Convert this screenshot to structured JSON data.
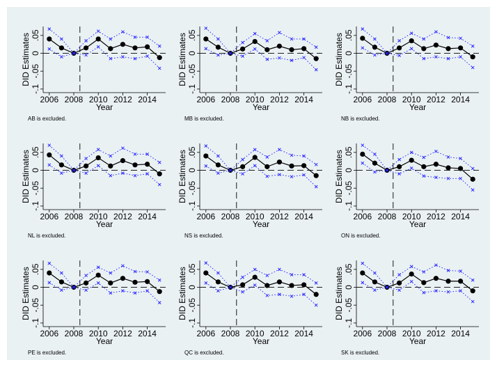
{
  "chart_data": [
    {
      "type": "line",
      "y_label": "DID Estimates",
      "x_label": "Year",
      "caption": "AB is excluded.",
      "x": [
        2006,
        2007,
        2008,
        2009,
        2010,
        2011,
        2012,
        2013,
        2014,
        2015
      ],
      "series": [
        {
          "color": "#000000",
          "marker": "circle",
          "line_style": "solid",
          "values": [
            0.04,
            0.015,
            0,
            0.015,
            0.04,
            0.013,
            0.025,
            0.015,
            0.018,
            -0.012
          ]
        },
        {
          "color": "#2a2aff",
          "marker": "x",
          "line_style": "dotted",
          "values": [
            0.068,
            0.04,
            0,
            0.035,
            0.062,
            0.04,
            0.06,
            0.045,
            0.045,
            0.02
          ]
        },
        {
          "color": "#2a2aff",
          "marker": "x",
          "line_style": "dotted",
          "values": [
            0.012,
            -0.01,
            0,
            -0.005,
            0.018,
            -0.015,
            -0.01,
            -0.015,
            -0.008,
            -0.042
          ]
        }
      ],
      "xlim": [
        2005.5,
        2015.5
      ],
      "ylim": [
        -0.11,
        0.075
      ],
      "xticks": [
        2006,
        2008,
        2010,
        2012,
        2014
      ],
      "yticks": [
        {
          "value": -0.1,
          "label": "-.1"
        },
        {
          "value": -0.05,
          "label": "-.05"
        },
        0,
        {
          "value": 0.05,
          "label": ".05"
        }
      ],
      "vline": 2008.5,
      "hline": 0
    },
    {
      "type": "line",
      "y_label": "DID Estimates",
      "x_label": "Year",
      "caption": "MB is excluded.",
      "x": [
        2006,
        2007,
        2008,
        2009,
        2010,
        2011,
        2012,
        2013,
        2014,
        2015
      ],
      "series": [
        {
          "color": "#000000",
          "marker": "circle",
          "line_style": "solid",
          "values": [
            0.04,
            0.017,
            0,
            0.012,
            0.033,
            0.01,
            0.02,
            0.01,
            0.013,
            -0.015
          ]
        },
        {
          "color": "#2a2aff",
          "marker": "x",
          "line_style": "dotted",
          "values": [
            0.07,
            0.04,
            0,
            0.03,
            0.055,
            0.035,
            0.058,
            0.04,
            0.04,
            0.017
          ]
        },
        {
          "color": "#2a2aff",
          "marker": "x",
          "line_style": "dotted",
          "values": [
            0.013,
            -0.005,
            0,
            -0.008,
            0.012,
            -0.017,
            -0.013,
            -0.02,
            -0.012,
            -0.046
          ]
        }
      ],
      "xlim": [
        2005.5,
        2015.5
      ],
      "ylim": [
        -0.11,
        0.075
      ],
      "xticks": [
        2006,
        2008,
        2010,
        2012,
        2014
      ],
      "yticks": [
        {
          "value": -0.1,
          "label": "-.1"
        },
        {
          "value": -0.05,
          "label": "-.05"
        },
        0,
        {
          "value": 0.05,
          "label": ".05"
        }
      ],
      "vline": 2008.5,
      "hline": 0
    },
    {
      "type": "line",
      "y_label": "DID Estimates",
      "x_label": "Year",
      "caption": "NB is excluded.",
      "x": [
        2006,
        2007,
        2008,
        2009,
        2010,
        2011,
        2012,
        2013,
        2014,
        2015
      ],
      "series": [
        {
          "color": "#000000",
          "marker": "circle",
          "line_style": "solid",
          "values": [
            0.042,
            0.017,
            0,
            0.015,
            0.035,
            0.013,
            0.023,
            0.013,
            0.015,
            -0.01
          ]
        },
        {
          "color": "#2a2aff",
          "marker": "x",
          "line_style": "dotted",
          "values": [
            0.068,
            0.04,
            0,
            0.035,
            0.056,
            0.04,
            0.06,
            0.044,
            0.042,
            0.02
          ]
        },
        {
          "color": "#2a2aff",
          "marker": "x",
          "line_style": "dotted",
          "values": [
            0.015,
            -0.005,
            0,
            -0.006,
            0.013,
            -0.015,
            -0.01,
            -0.015,
            -0.01,
            -0.04
          ]
        }
      ],
      "xlim": [
        2005.5,
        2015.5
      ],
      "ylim": [
        -0.11,
        0.075
      ],
      "xticks": [
        2006,
        2008,
        2010,
        2012,
        2014
      ],
      "yticks": [
        {
          "value": -0.1,
          "label": "-.1"
        },
        {
          "value": -0.05,
          "label": "-.05"
        },
        0,
        {
          "value": 0.05,
          "label": ".05"
        }
      ],
      "vline": 2008.5,
      "hline": 0
    },
    {
      "type": "line",
      "y_label": "DID Estimates",
      "x_label": "Year",
      "caption": "NL is excluded.",
      "x": [
        2006,
        2007,
        2008,
        2009,
        2010,
        2011,
        2012,
        2013,
        2014,
        2015
      ],
      "series": [
        {
          "color": "#000000",
          "marker": "circle",
          "line_style": "solid",
          "values": [
            0.043,
            0.015,
            0,
            0.012,
            0.035,
            0.012,
            0.027,
            0.015,
            0.017,
            -0.01
          ]
        },
        {
          "color": "#2a2aff",
          "marker": "x",
          "line_style": "dotted",
          "values": [
            0.07,
            0.04,
            0,
            0.033,
            0.058,
            0.04,
            0.062,
            0.045,
            0.045,
            0.022
          ]
        },
        {
          "color": "#2a2aff",
          "marker": "x",
          "line_style": "dotted",
          "values": [
            0.015,
            -0.008,
            0,
            -0.008,
            0.013,
            -0.015,
            -0.008,
            -0.015,
            -0.01,
            -0.04
          ]
        }
      ],
      "xlim": [
        2005.5,
        2015.5
      ],
      "ylim": [
        -0.11,
        0.075
      ],
      "xticks": [
        2006,
        2008,
        2010,
        2012,
        2014
      ],
      "yticks": [
        {
          "value": -0.1,
          "label": "-.1"
        },
        {
          "value": -0.05,
          "label": "-.05"
        },
        0,
        {
          "value": 0.05,
          "label": ".05"
        }
      ],
      "vline": 2008.5,
      "hline": 0
    },
    {
      "type": "line",
      "y_label": "DID Estimates",
      "x_label": "Year",
      "caption": "NS is excluded.",
      "x": [
        2006,
        2007,
        2008,
        2009,
        2010,
        2011,
        2012,
        2013,
        2014,
        2015
      ],
      "series": [
        {
          "color": "#000000",
          "marker": "circle",
          "line_style": "solid",
          "values": [
            0.04,
            0.015,
            0,
            0.01,
            0.036,
            0.01,
            0.023,
            0.012,
            0.013,
            -0.015
          ]
        },
        {
          "color": "#2a2aff",
          "marker": "x",
          "line_style": "dotted",
          "values": [
            0.068,
            0.04,
            0,
            0.03,
            0.058,
            0.037,
            0.058,
            0.042,
            0.04,
            0.016
          ]
        },
        {
          "color": "#2a2aff",
          "marker": "x",
          "line_style": "dotted",
          "values": [
            0.012,
            -0.008,
            0,
            -0.01,
            0.013,
            -0.017,
            -0.012,
            -0.018,
            -0.013,
            -0.046
          ]
        }
      ],
      "xlim": [
        2005.5,
        2015.5
      ],
      "ylim": [
        -0.11,
        0.075
      ],
      "xticks": [
        2006,
        2008,
        2010,
        2012,
        2014
      ],
      "yticks": [
        {
          "value": -0.1,
          "label": "-.1"
        },
        {
          "value": -0.05,
          "label": "-.05"
        },
        0,
        {
          "value": 0.05,
          "label": ".05"
        }
      ],
      "vline": 2008.5,
      "hline": 0
    },
    {
      "type": "line",
      "y_label": "DID Estimates",
      "x_label": "Year",
      "caption": "ON is excluded.",
      "x": [
        2006,
        2007,
        2008,
        2009,
        2010,
        2011,
        2012,
        2013,
        2014,
        2015
      ],
      "series": [
        {
          "color": "#000000",
          "marker": "circle",
          "line_style": "solid",
          "values": [
            0.045,
            0.02,
            0,
            0.01,
            0.028,
            0.01,
            0.017,
            0.007,
            0.005,
            -0.025
          ]
        },
        {
          "color": "#2a2aff",
          "marker": "x",
          "line_style": "dotted",
          "values": [
            0.07,
            0.045,
            0,
            0.03,
            0.05,
            0.036,
            0.053,
            0.037,
            0.033,
            0.005
          ]
        },
        {
          "color": "#2a2aff",
          "marker": "x",
          "line_style": "dotted",
          "values": [
            0.02,
            -0.005,
            0,
            -0.01,
            0.006,
            -0.016,
            -0.02,
            -0.023,
            -0.023,
            -0.055
          ]
        }
      ],
      "xlim": [
        2005.5,
        2015.5
      ],
      "ylim": [
        -0.11,
        0.075
      ],
      "xticks": [
        2006,
        2008,
        2010,
        2012,
        2014
      ],
      "yticks": [
        {
          "value": -0.1,
          "label": "-.1"
        },
        {
          "value": -0.05,
          "label": "-.05"
        },
        0,
        {
          "value": 0.05,
          "label": ".05"
        }
      ],
      "vline": 2008.5,
      "hline": 0
    },
    {
      "type": "line",
      "y_label": "DID Estimates",
      "x_label": "Year",
      "caption": "PE is excluded.",
      "x": [
        2006,
        2007,
        2008,
        2009,
        2010,
        2011,
        2012,
        2013,
        2014,
        2015
      ],
      "series": [
        {
          "color": "#000000",
          "marker": "circle",
          "line_style": "solid",
          "values": [
            0.04,
            0.015,
            0,
            0.012,
            0.034,
            0.012,
            0.025,
            0.014,
            0.016,
            -0.012
          ]
        },
        {
          "color": "#2a2aff",
          "marker": "x",
          "line_style": "dotted",
          "values": [
            0.067,
            0.04,
            0,
            0.033,
            0.056,
            0.04,
            0.06,
            0.044,
            0.043,
            0.02
          ]
        },
        {
          "color": "#2a2aff",
          "marker": "x",
          "line_style": "dotted",
          "values": [
            0.013,
            -0.008,
            0,
            -0.008,
            0.012,
            -0.016,
            -0.01,
            -0.016,
            -0.01,
            -0.043
          ]
        }
      ],
      "xlim": [
        2005.5,
        2015.5
      ],
      "ylim": [
        -0.11,
        0.075
      ],
      "xticks": [
        2006,
        2008,
        2010,
        2012,
        2014
      ],
      "yticks": [
        {
          "value": -0.1,
          "label": "-.1"
        },
        {
          "value": -0.05,
          "label": "-.05"
        },
        0,
        {
          "value": 0.05,
          "label": ".05"
        }
      ],
      "vline": 2008.5,
      "hline": 0
    },
    {
      "type": "line",
      "y_label": "DID Estimates",
      "x_label": "Year",
      "caption": "QC is excluded.",
      "x": [
        2006,
        2007,
        2008,
        2009,
        2010,
        2011,
        2012,
        2013,
        2014,
        2015
      ],
      "series": [
        {
          "color": "#000000",
          "marker": "circle",
          "line_style": "solid",
          "values": [
            0.04,
            0.015,
            0,
            0.007,
            0.028,
            0.005,
            0.015,
            0.005,
            0.007,
            -0.02
          ]
        },
        {
          "color": "#2a2aff",
          "marker": "x",
          "line_style": "dotted",
          "values": [
            0.068,
            0.04,
            0,
            0.028,
            0.05,
            0.033,
            0.05,
            0.035,
            0.035,
            0.012
          ]
        },
        {
          "color": "#2a2aff",
          "marker": "x",
          "line_style": "dotted",
          "values": [
            0.012,
            -0.01,
            0,
            -0.013,
            0.006,
            -0.023,
            -0.02,
            -0.025,
            -0.02,
            -0.05
          ]
        }
      ],
      "xlim": [
        2005.5,
        2015.5
      ],
      "ylim": [
        -0.11,
        0.075
      ],
      "xticks": [
        2006,
        2008,
        2010,
        2012,
        2014
      ],
      "yticks": [
        {
          "value": -0.1,
          "label": "-.1"
        },
        {
          "value": -0.05,
          "label": "-.05"
        },
        0,
        {
          "value": 0.05,
          "label": ".05"
        }
      ],
      "vline": 2008.5,
      "hline": 0
    },
    {
      "type": "line",
      "y_label": "DID Estimates",
      "x_label": "Year",
      "caption": "SK is excluded.",
      "x": [
        2006,
        2007,
        2008,
        2009,
        2010,
        2011,
        2012,
        2013,
        2014,
        2015
      ],
      "series": [
        {
          "color": "#000000",
          "marker": "circle",
          "line_style": "solid",
          "values": [
            0.04,
            0.015,
            0,
            0.012,
            0.037,
            0.013,
            0.025,
            0.017,
            0.017,
            -0.01
          ]
        },
        {
          "color": "#2a2aff",
          "marker": "x",
          "line_style": "dotted",
          "values": [
            0.067,
            0.04,
            0,
            0.035,
            0.058,
            0.043,
            0.062,
            0.047,
            0.045,
            0.02
          ]
        },
        {
          "color": "#2a2aff",
          "marker": "x",
          "line_style": "dotted",
          "values": [
            0.013,
            -0.008,
            0,
            -0.008,
            0.016,
            -0.015,
            -0.01,
            -0.013,
            -0.01,
            -0.04
          ]
        }
      ],
      "xlim": [
        2005.5,
        2015.5
      ],
      "ylim": [
        -0.11,
        0.075
      ],
      "xticks": [
        2006,
        2008,
        2010,
        2012,
        2014
      ],
      "yticks": [
        {
          "value": -0.1,
          "label": "-.1"
        },
        {
          "value": -0.05,
          "label": "-.05"
        },
        0,
        {
          "value": 0.05,
          "label": ".05"
        }
      ],
      "vline": 2008.5,
      "hline": 0
    }
  ]
}
